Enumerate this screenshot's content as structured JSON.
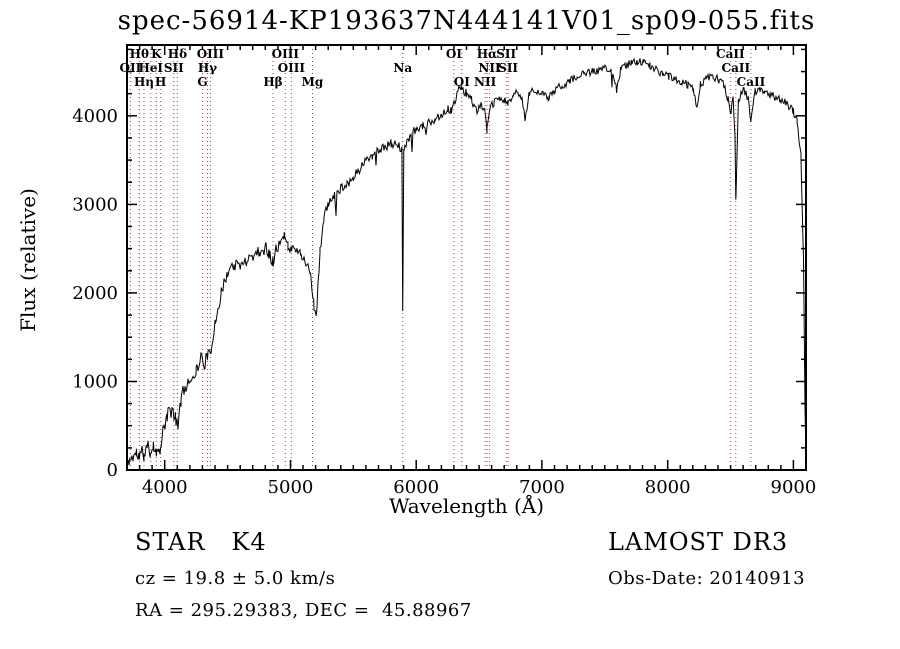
{
  "title": "spec-56914-KP193637N444141V01_sp09-055.fits",
  "annotations": {
    "classification": "STAR   K4",
    "survey": "LAMOST DR3",
    "cz": "cz = 19.8 ± 5.0 km/s",
    "obs_date": "Obs-Date: 20140913",
    "coords": "RA = 295.29383, DEC =  45.88967"
  },
  "chart_data": {
    "type": "line",
    "title": "spec-56914-KP193637N444141V01_sp09-055.fits",
    "xlabel": "Wavelength (Å)",
    "ylabel": "Flux (relative)",
    "xlim": [
      3700,
      9100
    ],
    "ylim": [
      0,
      4800
    ],
    "x_ticks": [
      4000,
      5000,
      6000,
      7000,
      8000,
      9000
    ],
    "y_ticks": [
      0,
      1000,
      2000,
      3000,
      4000
    ],
    "x_minor_step": 100,
    "y_minor_step": 250,
    "grid": false,
    "legend": "none",
    "line_color": "#000000",
    "spectral_line_color": "#a04040",
    "spectral_lines": [
      {
        "label": "OII",
        "wavelength": 3727,
        "row": 2
      },
      {
        "label": "Hθ",
        "wavelength": 3798,
        "row": 1
      },
      {
        "label": "Hη",
        "wavelength": 3835,
        "row": 3
      },
      {
        "label": "HeI",
        "wavelength": 3889,
        "row": 2
      },
      {
        "label": "K",
        "wavelength": 3933,
        "row": 1
      },
      {
        "label": "H",
        "wavelength": 3968,
        "row": 3
      },
      {
        "label": "SII",
        "wavelength": 4072,
        "row": 2
      },
      {
        "label": "Hδ",
        "wavelength": 4101,
        "row": 1
      },
      {
        "label": "G",
        "wavelength": 4300,
        "row": 3
      },
      {
        "label": "Hγ",
        "wavelength": 4340,
        "row": 2
      },
      {
        "label": "OIII",
        "wavelength": 4363,
        "row": 1
      },
      {
        "label": "Hβ",
        "wavelength": 4861,
        "row": 3
      },
      {
        "label": "OIII",
        "wavelength": 4959,
        "row": 1
      },
      {
        "label": "OIII",
        "wavelength": 5007,
        "row": 2
      },
      {
        "label": "Mg",
        "wavelength": 5175,
        "row": 3
      },
      {
        "label": "Na",
        "wavelength": 5893,
        "row": 2
      },
      {
        "label": "OI",
        "wavelength": 6300,
        "row": 1
      },
      {
        "label": "OI",
        "wavelength": 6363,
        "row": 3
      },
      {
        "label": "NII",
        "wavelength": 6548,
        "row": 3
      },
      {
        "label": "Hα",
        "wavelength": 6563,
        "row": 1
      },
      {
        "label": "NII",
        "wavelength": 6583,
        "row": 2
      },
      {
        "label": "SII",
        "wavelength": 6716,
        "row": 1
      },
      {
        "label": "SII",
        "wavelength": 6731,
        "row": 2
      },
      {
        "label": "CaII",
        "wavelength": 8498,
        "row": 1
      },
      {
        "label": "CaII",
        "wavelength": 8542,
        "row": 2
      },
      {
        "label": "CaII",
        "wavelength": 8662,
        "row": 3
      }
    ],
    "noise": {
      "seed": 11,
      "spike_prob": 0.012,
      "spike_max": 260,
      "sigma_steps": [
        [
          4200,
          85
        ],
        [
          5000,
          72
        ],
        [
          6000,
          55
        ],
        [
          9100,
          45
        ]
      ]
    },
    "series": [
      {
        "name": "flux",
        "color": "#000000",
        "anchors": [
          [
            3700,
            60
          ],
          [
            3720,
            110
          ],
          [
            3750,
            150
          ],
          [
            3775,
            190
          ],
          [
            3798,
            150
          ],
          [
            3820,
            210
          ],
          [
            3835,
            170
          ],
          [
            3860,
            260
          ],
          [
            3889,
            210
          ],
          [
            3910,
            300
          ],
          [
            3933,
            170
          ],
          [
            3950,
            290
          ],
          [
            3968,
            220
          ],
          [
            3990,
            470
          ],
          [
            4020,
            610
          ],
          [
            4060,
            680
          ],
          [
            4085,
            600
          ],
          [
            4101,
            500
          ],
          [
            4130,
            790
          ],
          [
            4160,
            940
          ],
          [
            4200,
            1020
          ],
          [
            4250,
            1120
          ],
          [
            4290,
            1280
          ],
          [
            4315,
            1190
          ],
          [
            4340,
            1310
          ],
          [
            4363,
            1270
          ],
          [
            4400,
            1690
          ],
          [
            4450,
            1990
          ],
          [
            4500,
            2240
          ],
          [
            4550,
            2320
          ],
          [
            4600,
            2290
          ],
          [
            4650,
            2380
          ],
          [
            4700,
            2420
          ],
          [
            4750,
            2470
          ],
          [
            4800,
            2520
          ],
          [
            4830,
            2440
          ],
          [
            4861,
            2370
          ],
          [
            4890,
            2520
          ],
          [
            4920,
            2570
          ],
          [
            4950,
            2620
          ],
          [
            4980,
            2530
          ],
          [
            5010,
            2470
          ],
          [
            5040,
            2520
          ],
          [
            5080,
            2430
          ],
          [
            5120,
            2370
          ],
          [
            5160,
            2180
          ],
          [
            5185,
            1890
          ],
          [
            5205,
            1720
          ],
          [
            5235,
            2480
          ],
          [
            5265,
            2840
          ],
          [
            5300,
            3000
          ],
          [
            5350,
            3090
          ],
          [
            5400,
            3190
          ],
          [
            5450,
            3240
          ],
          [
            5500,
            3300
          ],
          [
            5550,
            3400
          ],
          [
            5600,
            3500
          ],
          [
            5650,
            3560
          ],
          [
            5700,
            3620
          ],
          [
            5750,
            3650
          ],
          [
            5800,
            3680
          ],
          [
            5850,
            3660
          ],
          [
            5886,
            3630
          ],
          [
            5893,
            1780
          ],
          [
            5901,
            3590
          ],
          [
            5950,
            3770
          ],
          [
            6000,
            3850
          ],
          [
            6050,
            3880
          ],
          [
            6100,
            3920
          ],
          [
            6150,
            3960
          ],
          [
            6200,
            4020
          ],
          [
            6250,
            4080
          ],
          [
            6280,
            4050
          ],
          [
            6310,
            4160
          ],
          [
            6340,
            4350
          ],
          [
            6360,
            4300
          ],
          [
            6400,
            4260
          ],
          [
            6440,
            4180
          ],
          [
            6480,
            4060
          ],
          [
            6520,
            4140
          ],
          [
            6545,
            4040
          ],
          [
            6563,
            3840
          ],
          [
            6590,
            4090
          ],
          [
            6620,
            4150
          ],
          [
            6660,
            4200
          ],
          [
            6700,
            4170
          ],
          [
            6731,
            4140
          ],
          [
            6770,
            4230
          ],
          [
            6810,
            4280
          ],
          [
            6840,
            4190
          ],
          [
            6867,
            3940
          ],
          [
            6900,
            4270
          ],
          [
            6950,
            4300
          ],
          [
            7000,
            4240
          ],
          [
            7050,
            4200
          ],
          [
            7100,
            4280
          ],
          [
            7160,
            4350
          ],
          [
            7220,
            4390
          ],
          [
            7280,
            4440
          ],
          [
            7340,
            4470
          ],
          [
            7400,
            4500
          ],
          [
            7460,
            4520
          ],
          [
            7520,
            4540
          ],
          [
            7560,
            4470
          ],
          [
            7594,
            4300
          ],
          [
            7625,
            4510
          ],
          [
            7660,
            4560
          ],
          [
            7710,
            4600
          ],
          [
            7760,
            4620
          ],
          [
            7810,
            4600
          ],
          [
            7860,
            4560
          ],
          [
            7910,
            4520
          ],
          [
            7960,
            4480
          ],
          [
            8010,
            4450
          ],
          [
            8060,
            4400
          ],
          [
            8110,
            4380
          ],
          [
            8160,
            4350
          ],
          [
            8205,
            4290
          ],
          [
            8230,
            4110
          ],
          [
            8260,
            4350
          ],
          [
            8310,
            4420
          ],
          [
            8360,
            4450
          ],
          [
            8410,
            4400
          ],
          [
            8450,
            4340
          ],
          [
            8480,
            4190
          ],
          [
            8498,
            4000
          ],
          [
            8520,
            4240
          ],
          [
            8535,
            3780
          ],
          [
            8542,
            3050
          ],
          [
            8562,
            4190
          ],
          [
            8600,
            4300
          ],
          [
            8640,
            4190
          ],
          [
            8662,
            3950
          ],
          [
            8695,
            4270
          ],
          [
            8730,
            4300
          ],
          [
            8770,
            4280
          ],
          [
            8810,
            4250
          ],
          [
            8850,
            4220
          ],
          [
            8890,
            4190
          ],
          [
            8930,
            4150
          ],
          [
            8965,
            4100
          ],
          [
            9000,
            4050
          ],
          [
            9030,
            3940
          ],
          [
            9060,
            3550
          ],
          [
            9080,
            2400
          ],
          [
            9092,
            700
          ],
          [
            9100,
            80
          ]
        ]
      }
    ]
  }
}
